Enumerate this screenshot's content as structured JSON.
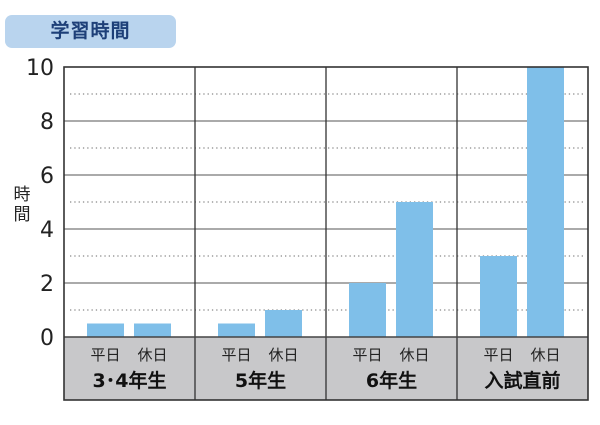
{
  "chart_data": {
    "type": "bar",
    "title": "学習時間",
    "ylabel": "時間",
    "ylim": [
      0,
      10
    ],
    "yticks": [
      0,
      2,
      4,
      6,
      8,
      10
    ],
    "grid": true,
    "groups": [
      {
        "label": "3･4年生",
        "categories": [
          "平日",
          "休日"
        ],
        "values": [
          0.5,
          0.5
        ]
      },
      {
        "label": "5年生",
        "categories": [
          "平日",
          "休日"
        ],
        "values": [
          0.5,
          1
        ]
      },
      {
        "label": "6年生",
        "categories": [
          "平日",
          "休日"
        ],
        "values": [
          2,
          5
        ]
      },
      {
        "label": "入試直前",
        "categories": [
          "平日",
          "休日"
        ],
        "values": [
          3,
          10
        ]
      }
    ],
    "colors": {
      "bar": "#7fbfe9",
      "label_band": "#c8c8ca",
      "title_bg": "#b9d4ee",
      "title_text": "#1d3f78"
    }
  }
}
